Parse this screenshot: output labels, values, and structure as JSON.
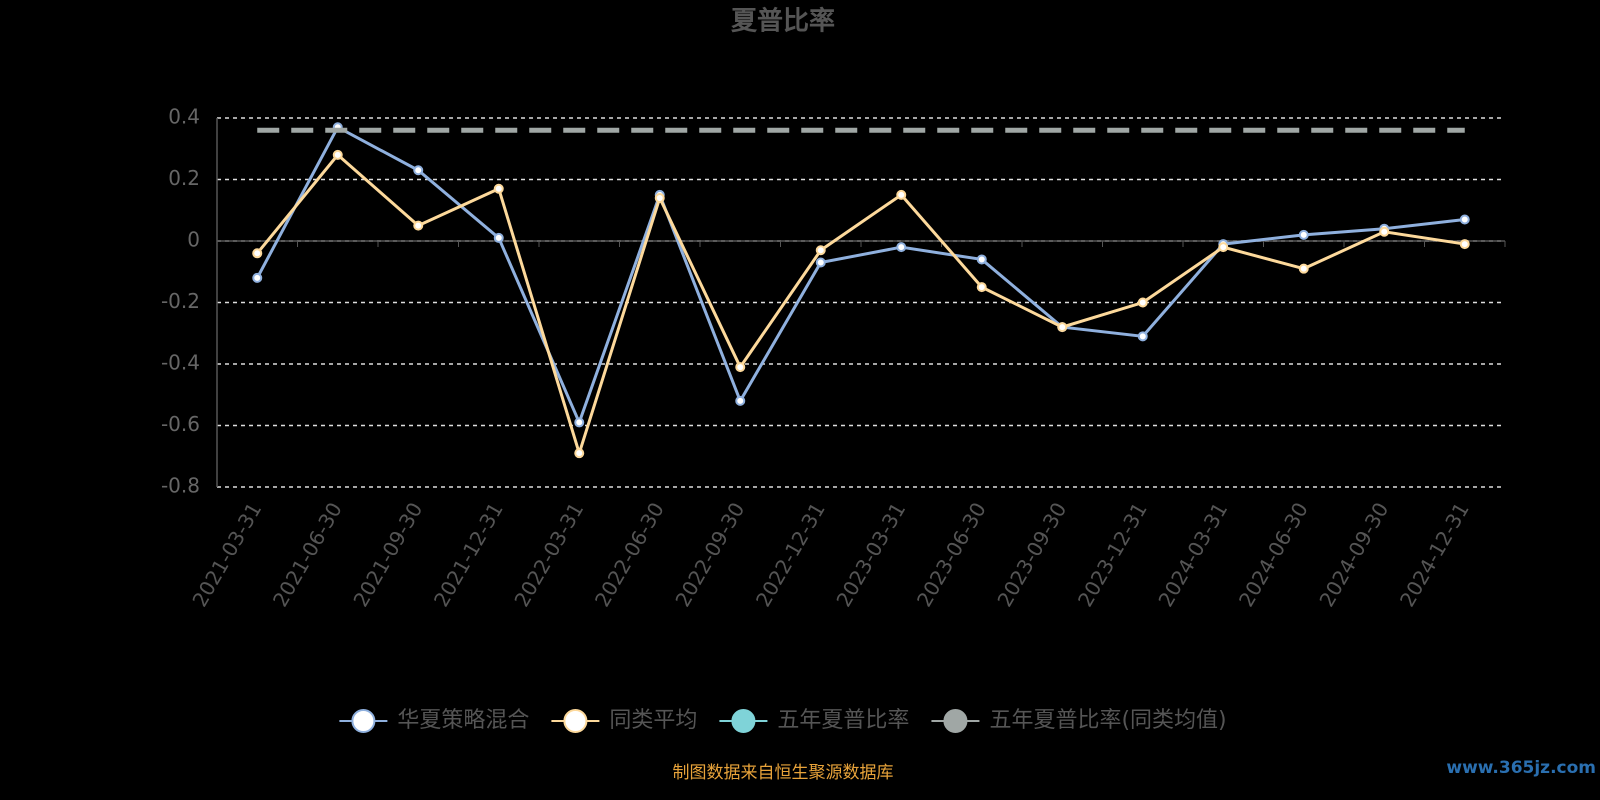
{
  "chart_data": {
    "type": "line",
    "title": "夏普比率",
    "categories": [
      "2021-03-31",
      "2021-06-30",
      "2021-09-30",
      "2021-12-31",
      "2022-03-31",
      "2022-06-30",
      "2022-09-30",
      "2022-12-31",
      "2023-03-31",
      "2023-06-30",
      "2023-09-30",
      "2023-12-31",
      "2024-03-31",
      "2024-06-30",
      "2024-09-30",
      "2024-12-31"
    ],
    "series": [
      {
        "name": "华夏策略混合",
        "color": "#8fb0de",
        "values": [
          -0.12,
          0.37,
          0.23,
          0.01,
          -0.59,
          0.15,
          -0.52,
          -0.07,
          -0.02,
          -0.06,
          -0.28,
          -0.31,
          -0.01,
          0.02,
          0.04,
          0.07
        ]
      },
      {
        "name": "同类平均",
        "color": "#fdd99b",
        "values": [
          -0.04,
          0.28,
          0.05,
          0.17,
          -0.69,
          0.14,
          -0.41,
          -0.03,
          0.15,
          -0.15,
          -0.28,
          -0.2,
          -0.02,
          -0.09,
          0.03,
          -0.01
        ]
      },
      {
        "name": "五年夏普比率",
        "color": "#7fd3d8",
        "values": [
          null,
          null,
          null,
          null,
          null,
          null,
          null,
          null,
          null,
          null,
          null,
          null,
          null,
          null,
          null,
          null
        ]
      },
      {
        "name": "五年夏普比率(同类均值)",
        "color": "#a0a7a5",
        "values": [
          0.36,
          0.36,
          0.36,
          0.36,
          0.36,
          0.36,
          0.36,
          0.36,
          0.36,
          0.36,
          0.36,
          0.36,
          0.36,
          0.36,
          0.36,
          0.36
        ]
      }
    ],
    "ylim": [
      -0.8,
      0.4
    ],
    "yticks": [
      0.4,
      0.2,
      0,
      -0.2,
      -0.4,
      -0.6,
      -0.8
    ],
    "grid": true,
    "source": "制图数据来自恒生聚源数据库",
    "watermark": "www.365jz.com"
  }
}
